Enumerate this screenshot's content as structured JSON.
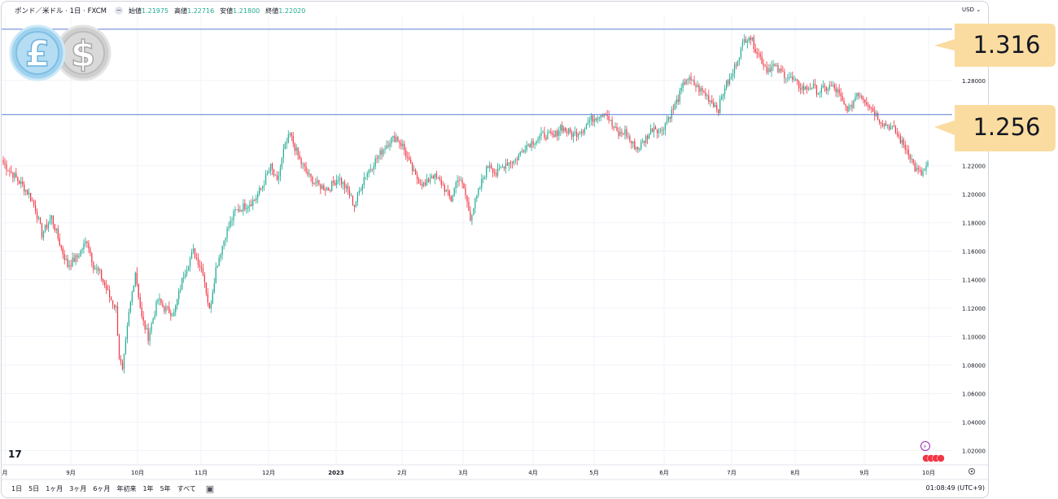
{
  "header": {
    "symbol": "ポンド／米ドル · 1日 · FXCM",
    "collapse_icon": "minus-icon",
    "ohlc": [
      {
        "label": "始値",
        "value": "1.21975"
      },
      {
        "label": "高値",
        "value": "1.22716"
      },
      {
        "label": "安値",
        "value": "1.21800"
      },
      {
        "label": "終値",
        "value": "1.22020"
      }
    ],
    "currency": "USD"
  },
  "overlay": {
    "coin_icons": [
      "pound-coin-icon",
      "dollar-coin-icon"
    ],
    "callout_upper": "1.316",
    "callout_lower": "1.256"
  },
  "footer": {
    "ranges": [
      "1日",
      "5日",
      "1ヶ月",
      "3ヶ月",
      "6ヶ月",
      "年初来",
      "1年",
      "5年",
      "すべて"
    ],
    "clock": "01:08:49 (UTC+9)"
  },
  "colors": {
    "up": "#22ab94",
    "down": "#f23645",
    "level_line": "#5b7fd6",
    "callout": "#fbdca0"
  },
  "chart_data": {
    "type": "candlestick",
    "title": "ポンド／米ドル · 1日 · FXCM",
    "ylim": [
      1.01,
      1.3262
    ],
    "yticks": [
      "1.02000",
      "1.04000",
      "1.06000",
      "1.08000",
      "1.10000",
      "1.12000",
      "1.14000",
      "1.16000",
      "1.18000",
      "1.20000",
      "1.22000",
      "1.28000"
    ],
    "xticks": [
      "月",
      "9月",
      "10月",
      "11月",
      "12月",
      "2023",
      "2月",
      "3月",
      "4月",
      "5月",
      "6月",
      "7月",
      "8月",
      "9月",
      "10月"
    ],
    "horizontal_levels": [
      1.316,
      1.256
    ],
    "close_series": [
      [
        0,
        1.222
      ],
      [
        6,
        1.214
      ],
      [
        12,
        1.206
      ],
      [
        16,
        1.2
      ],
      [
        20,
        1.19
      ],
      [
        24,
        1.172
      ],
      [
        30,
        1.184
      ],
      [
        36,
        1.162
      ],
      [
        40,
        1.15
      ],
      [
        46,
        1.156
      ],
      [
        52,
        1.168
      ],
      [
        56,
        1.15
      ],
      [
        60,
        1.144
      ],
      [
        66,
        1.128
      ],
      [
        70,
        1.12
      ],
      [
        72,
        1.086
      ],
      [
        74,
        1.075
      ],
      [
        78,
        1.116
      ],
      [
        82,
        1.146
      ],
      [
        86,
        1.113
      ],
      [
        90,
        1.1
      ],
      [
        96,
        1.126
      ],
      [
        100,
        1.12
      ],
      [
        106,
        1.116
      ],
      [
        112,
        1.144
      ],
      [
        118,
        1.16
      ],
      [
        124,
        1.146
      ],
      [
        128,
        1.118
      ],
      [
        132,
        1.148
      ],
      [
        138,
        1.172
      ],
      [
        144,
        1.188
      ],
      [
        150,
        1.192
      ],
      [
        156,
        1.196
      ],
      [
        160,
        1.204
      ],
      [
        166,
        1.219
      ],
      [
        170,
        1.208
      ],
      [
        174,
        1.23
      ],
      [
        178,
        1.242
      ],
      [
        184,
        1.224
      ],
      [
        190,
        1.212
      ],
      [
        196,
        1.206
      ],
      [
        202,
        1.204
      ],
      [
        208,
        1.212
      ],
      [
        214,
        1.202
      ],
      [
        218,
        1.192
      ],
      [
        224,
        1.212
      ],
      [
        230,
        1.222
      ],
      [
        236,
        1.232
      ],
      [
        240,
        1.238
      ],
      [
        244,
        1.24
      ],
      [
        248,
        1.234
      ],
      [
        252,
        1.222
      ],
      [
        256,
        1.212
      ],
      [
        262,
        1.206
      ],
      [
        266,
        1.214
      ],
      [
        272,
        1.208
      ],
      [
        278,
        1.196
      ],
      [
        282,
        1.212
      ],
      [
        286,
        1.204
      ],
      [
        290,
        1.184
      ],
      [
        294,
        1.198
      ],
      [
        298,
        1.212
      ],
      [
        302,
        1.222
      ],
      [
        306,
        1.214
      ],
      [
        312,
        1.222
      ],
      [
        318,
        1.224
      ],
      [
        324,
        1.234
      ],
      [
        330,
        1.238
      ],
      [
        336,
        1.242
      ],
      [
        342,
        1.24
      ],
      [
        346,
        1.248
      ],
      [
        350,
        1.244
      ],
      [
        354,
        1.242
      ],
      [
        360,
        1.246
      ],
      [
        364,
        1.252
      ],
      [
        370,
        1.256
      ],
      [
        374,
        1.258
      ],
      [
        378,
        1.248
      ],
      [
        382,
        1.242
      ],
      [
        386,
        1.244
      ],
      [
        390,
        1.236
      ],
      [
        394,
        1.232
      ],
      [
        398,
        1.238
      ],
      [
        404,
        1.248
      ],
      [
        408,
        1.244
      ],
      [
        412,
        1.252
      ],
      [
        416,
        1.26
      ],
      [
        420,
        1.27
      ],
      [
        424,
        1.282
      ],
      [
        428,
        1.278
      ],
      [
        432,
        1.274
      ],
      [
        436,
        1.27
      ],
      [
        440,
        1.265
      ],
      [
        444,
        1.26
      ],
      [
        448,
        1.276
      ],
      [
        452,
        1.282
      ],
      [
        456,
        1.296
      ],
      [
        460,
        1.308
      ],
      [
        463,
        1.312
      ],
      [
        466,
        1.305
      ],
      [
        470,
        1.296
      ],
      [
        474,
        1.288
      ],
      [
        478,
        1.29
      ],
      [
        482,
        1.286
      ],
      [
        486,
        1.284
      ],
      [
        490,
        1.28
      ],
      [
        494,
        1.276
      ],
      [
        498,
        1.274
      ],
      [
        502,
        1.276
      ],
      [
        506,
        1.272
      ],
      [
        510,
        1.274
      ],
      [
        514,
        1.276
      ],
      [
        518,
        1.272
      ],
      [
        522,
        1.262
      ],
      [
        526,
        1.26
      ],
      [
        530,
        1.272
      ],
      [
        534,
        1.268
      ],
      [
        538,
        1.262
      ],
      [
        542,
        1.256
      ],
      [
        546,
        1.25
      ],
      [
        550,
        1.248
      ],
      [
        554,
        1.244
      ],
      [
        558,
        1.236
      ],
      [
        562,
        1.23
      ],
      [
        566,
        1.218
      ],
      [
        570,
        1.214
      ],
      [
        574,
        1.22
      ]
    ]
  }
}
